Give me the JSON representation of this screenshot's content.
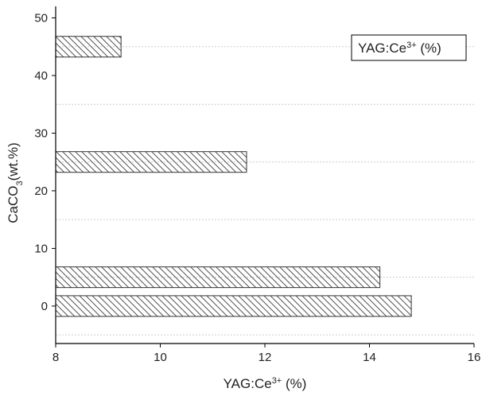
{
  "chart_data": {
    "type": "bar",
    "orientation": "horizontal",
    "categories": [
      "0",
      "5",
      "25",
      "45"
    ],
    "values": [
      14.8,
      14.2,
      11.65,
      9.25
    ],
    "xlabel": "YAG:Ce3+ (%)",
    "ylabel": "CaCO3(wt.%)",
    "xlim": [
      8,
      16
    ],
    "ylim": [
      -6.5,
      52
    ],
    "xticks": [
      "8",
      "10",
      "12",
      "14",
      "16"
    ],
    "yticks": [
      "0",
      "10",
      "20",
      "30",
      "40",
      "50"
    ],
    "grid": "dashed horizontal",
    "legend": {
      "label": "YAG:Ce3+ (%)",
      "position": "top-right"
    },
    "bar_fill": "diagonal hatch",
    "colors": {
      "bar_edge": "#333333",
      "hatch": "#555555",
      "grid": "#cccccc",
      "axis": "#000000"
    }
  }
}
